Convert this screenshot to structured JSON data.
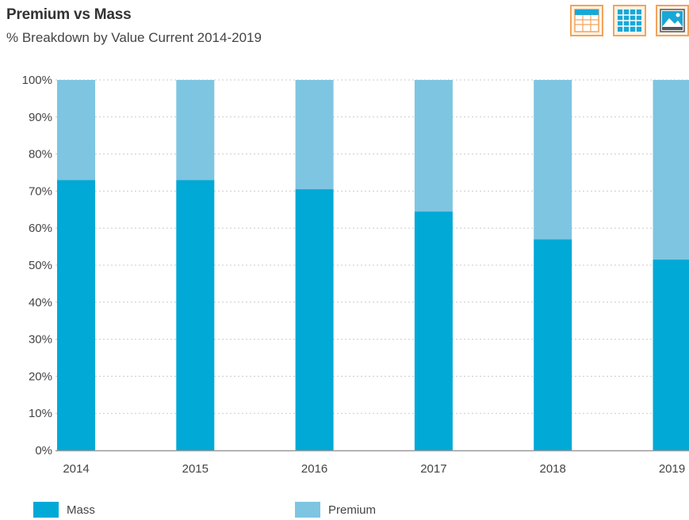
{
  "chart_data": {
    "type": "bar",
    "stacked": true,
    "title": "Premium vs Mass",
    "subtitle": "% Breakdown by Value Current 2014-2019",
    "categories": [
      "2014",
      "2015",
      "2016",
      "2017",
      "2018",
      "2019"
    ],
    "series": [
      {
        "name": "Mass",
        "color": "#00a9d6",
        "values": [
          73,
          73,
          70.5,
          64.5,
          57,
          51.5
        ]
      },
      {
        "name": "Premium",
        "color": "#7ec5e2",
        "values": [
          27,
          27,
          29.5,
          35.5,
          43,
          48.5
        ]
      }
    ],
    "ylim": [
      0,
      100
    ],
    "yticks": [
      "0%",
      "10%",
      "20%",
      "30%",
      "40%",
      "50%",
      "60%",
      "70%",
      "80%",
      "90%",
      "100%"
    ],
    "xlabel": "",
    "ylabel": "",
    "grid": true,
    "legend_position": "bottom"
  },
  "toolbar": {
    "buttons": [
      {
        "name": "table-view-button",
        "icon": "table-icon"
      },
      {
        "name": "grid-view-button",
        "icon": "grid-icon"
      },
      {
        "name": "image-view-button",
        "icon": "image-icon"
      }
    ]
  }
}
